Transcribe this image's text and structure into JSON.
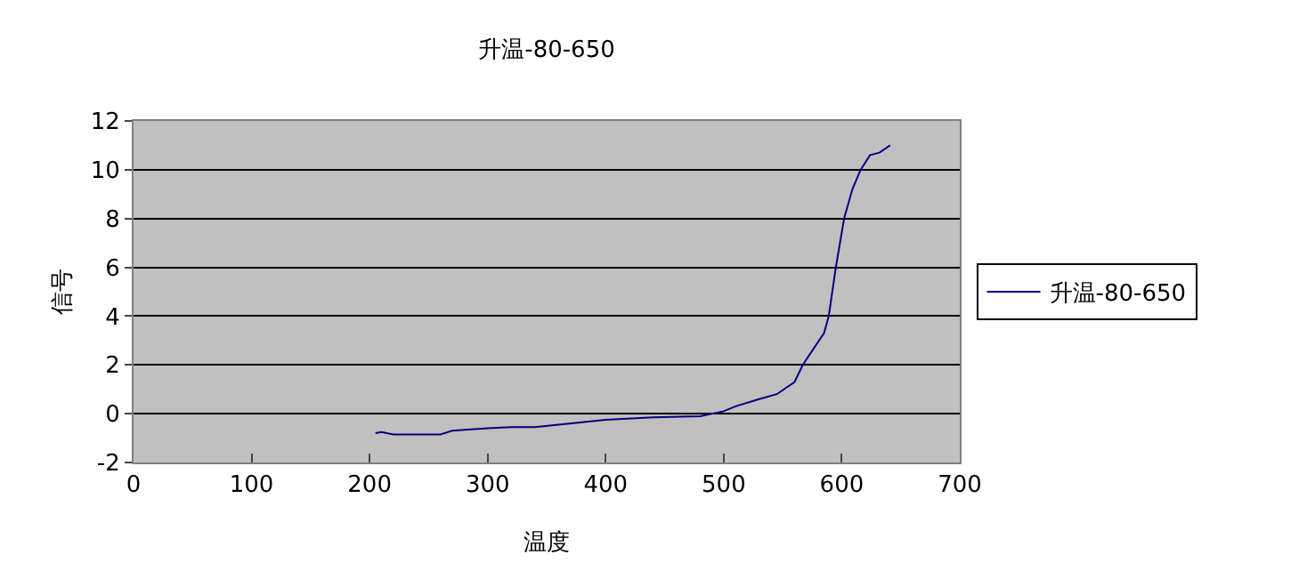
{
  "chart_data": {
    "type": "line",
    "title": "升温-80-650",
    "xlabel": "温度",
    "ylabel": "信号",
    "xlim": [
      0,
      700
    ],
    "xticks": [
      0,
      100,
      200,
      300,
      400,
      500,
      600,
      700
    ],
    "ylim": [
      -2,
      12
    ],
    "yticks": [
      -2,
      0,
      2,
      4,
      6,
      8,
      10,
      12
    ],
    "grid": "y",
    "legend": "right",
    "marker": "none",
    "line_style": "solid",
    "series": [
      {
        "name": "升温-80-650",
        "color": "#000080",
        "x": [
          205,
          210,
          220,
          260,
          270,
          300,
          320,
          340,
          360,
          380,
          400,
          440,
          480,
          500,
          510,
          530,
          545,
          560,
          567,
          578,
          585,
          589,
          595,
          602,
          609,
          616,
          624,
          632,
          641
        ],
        "values": [
          -0.8,
          -0.75,
          -0.85,
          -0.85,
          -0.7,
          -0.6,
          -0.55,
          -0.55,
          -0.45,
          -0.35,
          -0.25,
          -0.15,
          -0.1,
          0.1,
          0.3,
          0.6,
          0.8,
          1.3,
          2,
          2.8,
          3.3,
          4,
          6,
          8,
          9.2,
          10,
          10.6,
          10.7,
          11
        ]
      }
    ]
  }
}
